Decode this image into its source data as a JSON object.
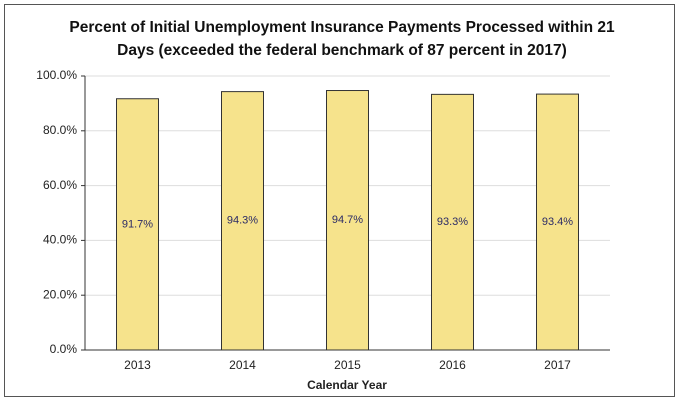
{
  "chart_data": {
    "type": "bar",
    "title": [
      "Percent of Initial Unemployment Insurance Payments Processed within 21",
      "Days (exceeded the federal benchmark of 87 percent in 2017)"
    ],
    "x_label": "Calendar Year",
    "categories": [
      "2013",
      "2014",
      "2015",
      "2016",
      "2017"
    ],
    "values": [
      91.7,
      94.3,
      94.7,
      93.3,
      93.4
    ],
    "value_labels": [
      "91.7%",
      "94.3%",
      "94.7%",
      "93.3%",
      "93.4%"
    ],
    "color": "#f6e38c",
    "ylim": [
      0,
      100
    ],
    "yticks": [
      {
        "value": 0,
        "label": "0.0%"
      },
      {
        "value": 20,
        "label": "20.0%"
      },
      {
        "value": 40,
        "label": "40.0%"
      },
      {
        "value": 60,
        "label": "60.0%"
      },
      {
        "value": 80,
        "label": "80.0%"
      },
      {
        "value": 100,
        "label": "100.0%"
      }
    ],
    "grid": true
  }
}
